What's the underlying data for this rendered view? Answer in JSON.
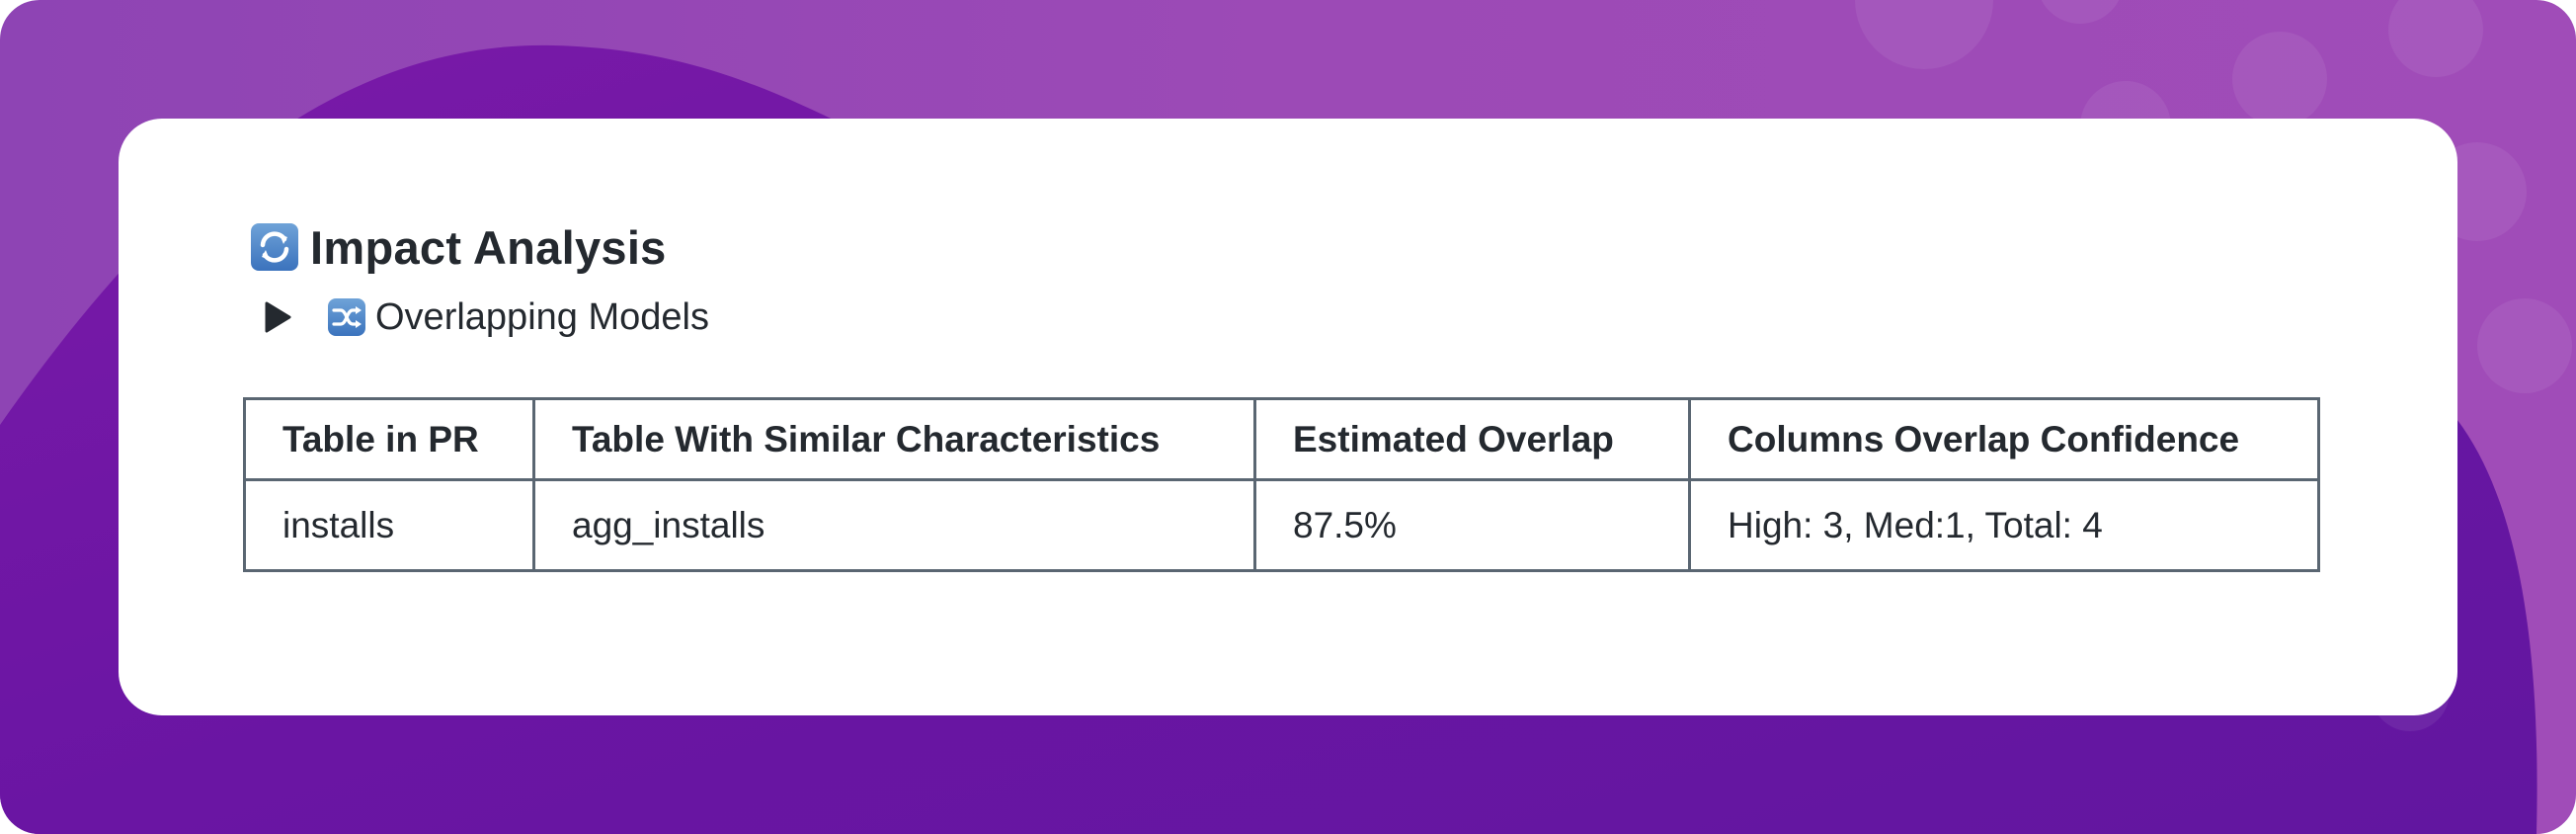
{
  "colors": {
    "bg_light": "#9c4ab6",
    "bg_dark": "#6c17a6",
    "card": "#ffffff",
    "text": "#24292f",
    "table_border": "#5a6672"
  },
  "header": {
    "icon": "arrows-counterclockwise-icon",
    "title": "Impact Analysis"
  },
  "details": {
    "toggle_icon": "play-triangle-icon",
    "icon": "twisted-arrows-icon",
    "label": "Overlapping Models"
  },
  "table": {
    "headers": [
      "Table in PR",
      "Table With Similar Characteristics",
      "Estimated Overlap",
      "Columns Overlap Confidence"
    ],
    "rows": [
      [
        "installs",
        "agg_installs",
        "87.5%",
        "High: 3, Med:1, Total: 4"
      ]
    ]
  }
}
